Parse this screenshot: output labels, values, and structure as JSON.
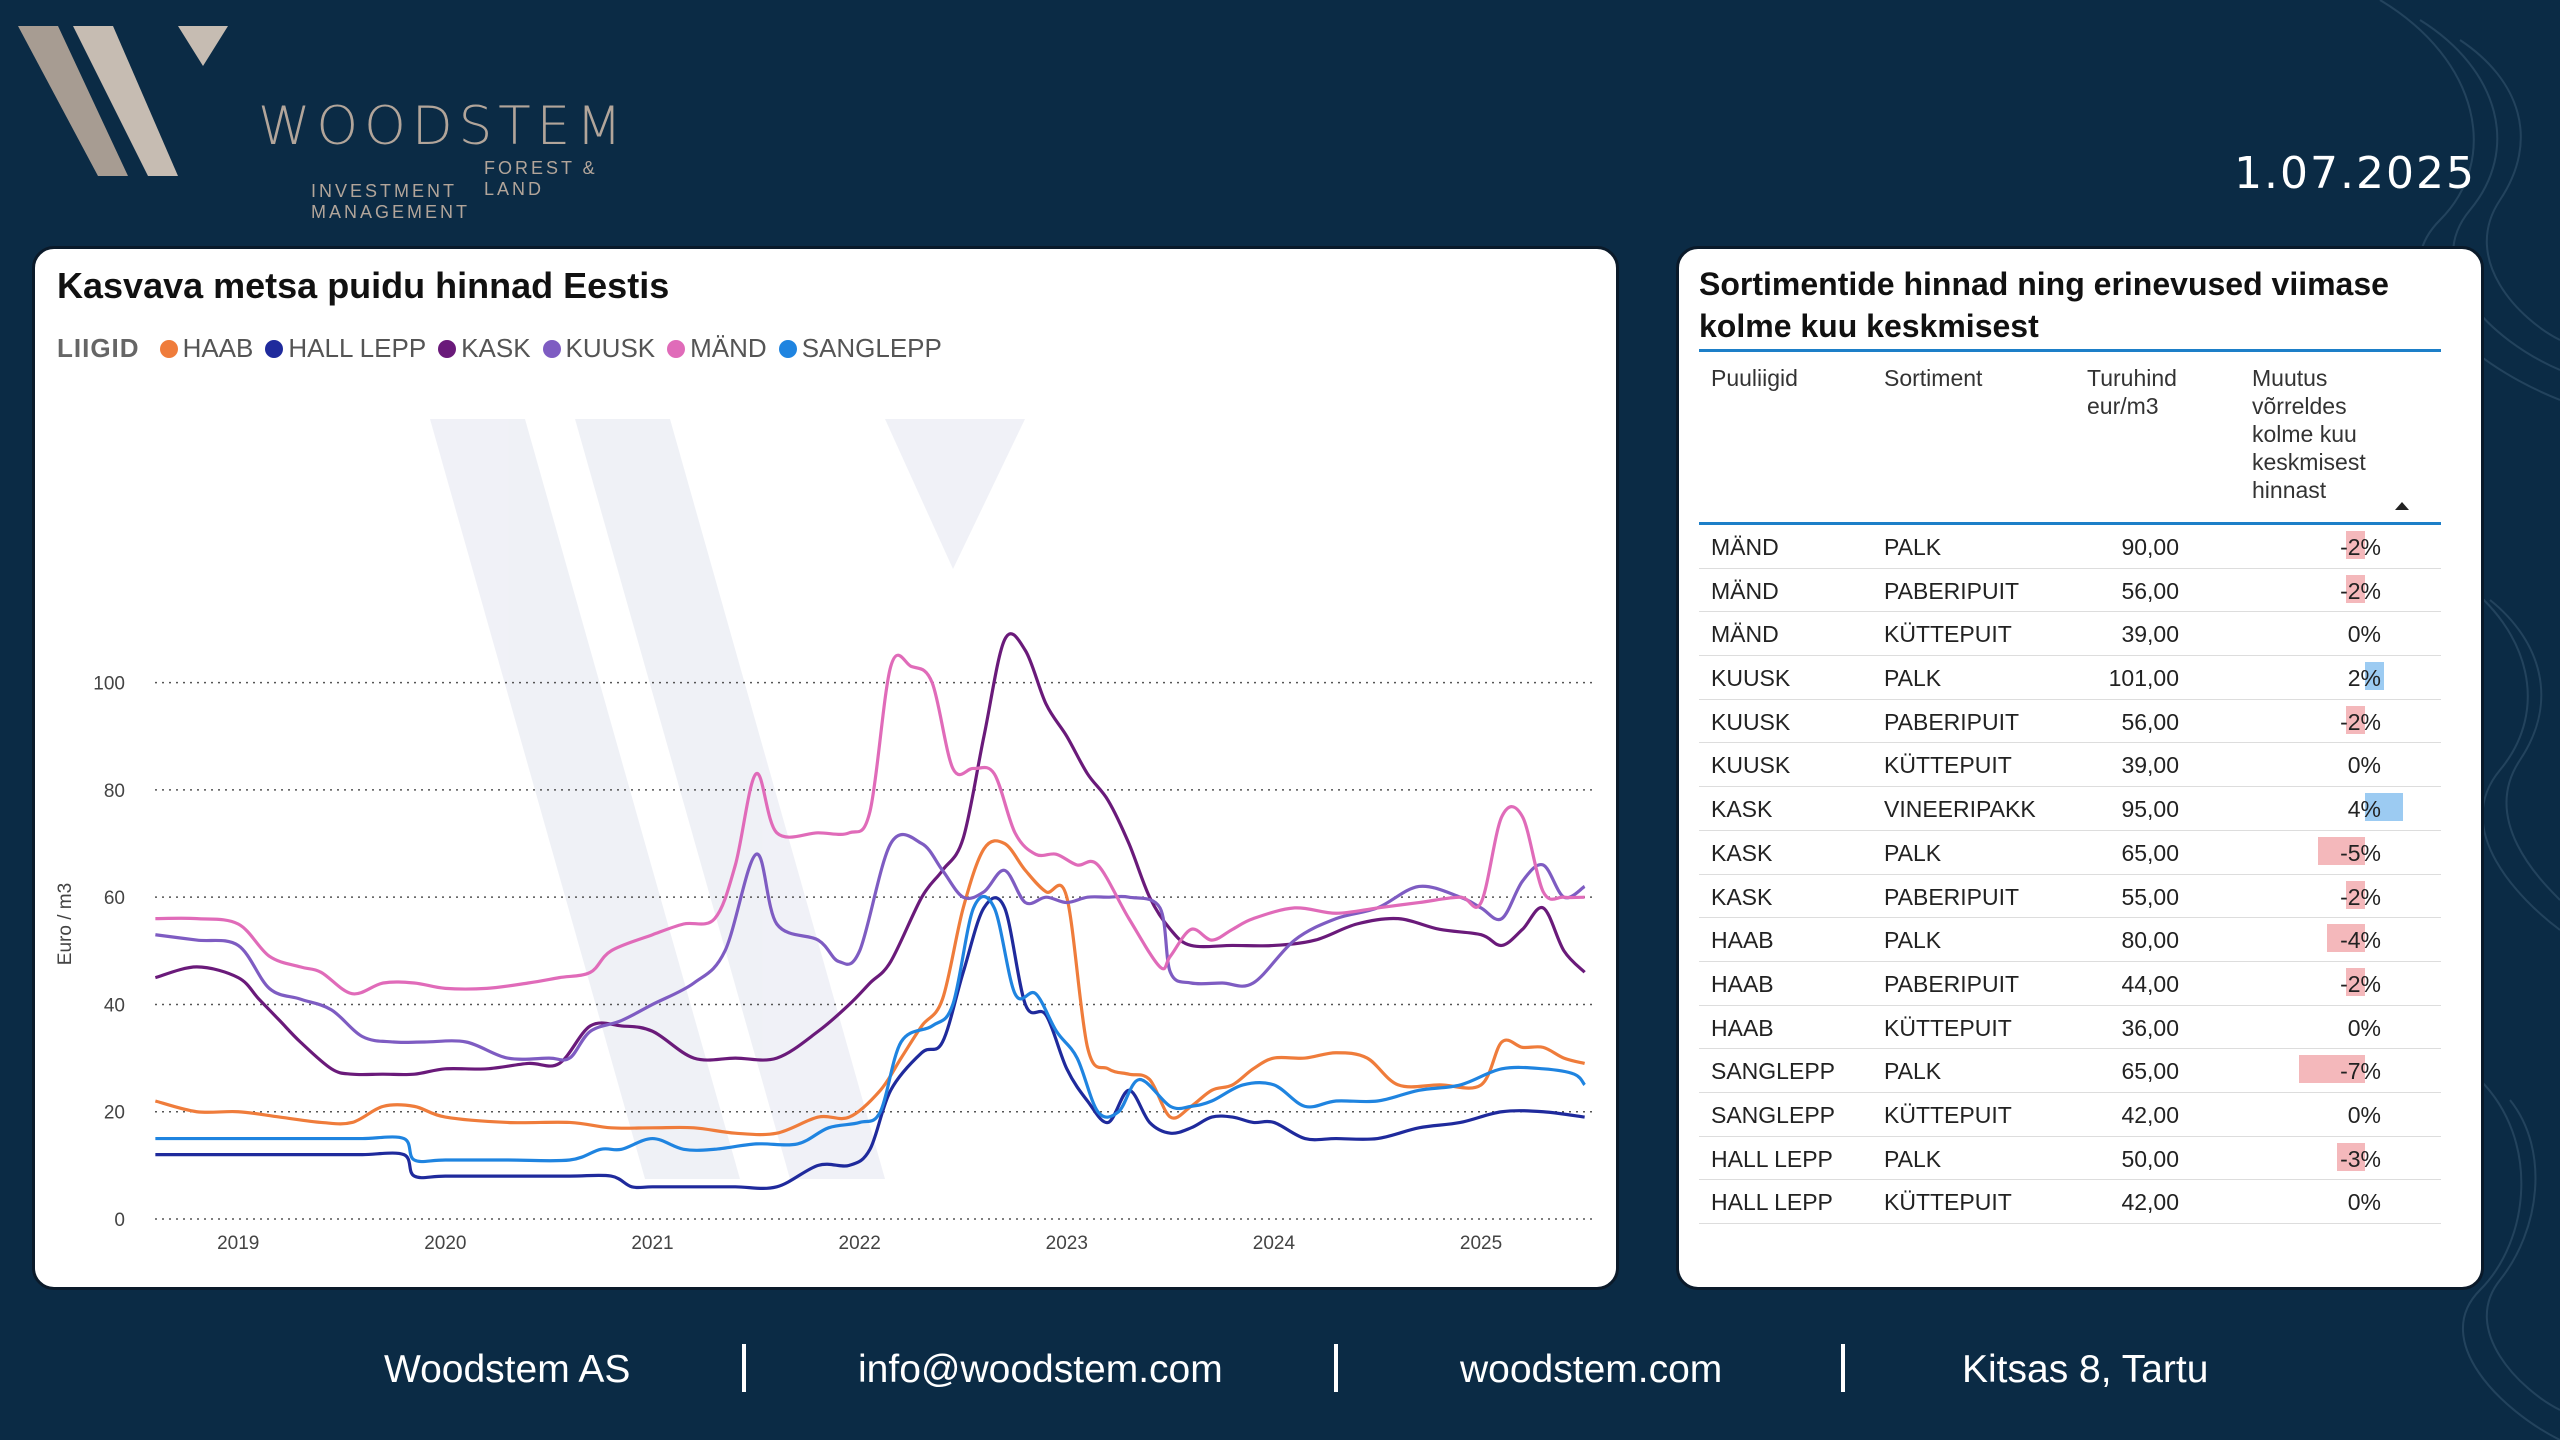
{
  "brand": {
    "name": "WOODSTEM",
    "sub1": "FOREST & LAND",
    "sub2": "INVESTMENT MANAGEMENT"
  },
  "date": "1.07.2025",
  "chart_card": {
    "title": "Kasvava metsa puidu hinnad Eestis",
    "legend_title": "LIIGID"
  },
  "chart_data": {
    "type": "line",
    "title": "Kasvava metsa puidu hinnad Eestis",
    "ylabel": "Euro / m3",
    "xlabel": "",
    "ylim": [
      0,
      110
    ],
    "yticks": [
      0,
      20,
      40,
      60,
      80,
      100
    ],
    "xticks": [
      2019,
      2020,
      2021,
      2022,
      2023,
      2024,
      2025
    ],
    "xlim": [
      2018.55,
      2025.55
    ],
    "grid": true,
    "legend_position": "top-left",
    "series": [
      {
        "name": "HAAB",
        "color": "#ef7c3b",
        "x": [
          2018.6,
          2018.8,
          2019.0,
          2019.2,
          2019.4,
          2019.55,
          2019.7,
          2019.85,
          2020.0,
          2020.3,
          2020.6,
          2020.8,
          2021.0,
          2021.2,
          2021.4,
          2021.6,
          2021.8,
          2021.95,
          2022.1,
          2022.2,
          2022.3,
          2022.4,
          2022.5,
          2022.6,
          2022.7,
          2022.8,
          2022.9,
          2023.0,
          2023.1,
          2023.2,
          2023.3,
          2023.4,
          2023.5,
          2023.6,
          2023.7,
          2023.8,
          2023.9,
          2024.0,
          2024.15,
          2024.3,
          2024.45,
          2024.6,
          2024.8,
          2025.0,
          2025.1,
          2025.2,
          2025.3,
          2025.4,
          2025.5
        ],
        "y": [
          22,
          20,
          20,
          19,
          18,
          18,
          21,
          21,
          19,
          18,
          18,
          17,
          17,
          17,
          16,
          16,
          19,
          19,
          24,
          30,
          36,
          41,
          58,
          69,
          70,
          65,
          61,
          60,
          32,
          28,
          27,
          26,
          19,
          21,
          24,
          25,
          28,
          30,
          30,
          31,
          30,
          25,
          25,
          25,
          33,
          32,
          32,
          30,
          29
        ]
      },
      {
        "name": "HALL LEPP",
        "color": "#1f2a9c",
        "x": [
          2018.6,
          2018.8,
          2019.0,
          2019.2,
          2019.4,
          2019.6,
          2019.8,
          2019.85,
          2020.0,
          2020.3,
          2020.6,
          2020.8,
          2020.9,
          2021.0,
          2021.2,
          2021.4,
          2021.6,
          2021.8,
          2021.95,
          2022.05,
          2022.15,
          2022.3,
          2022.4,
          2022.5,
          2022.6,
          2022.7,
          2022.8,
          2022.9,
          2023.0,
          2023.1,
          2023.2,
          2023.3,
          2023.4,
          2023.5,
          2023.6,
          2023.7,
          2023.8,
          2023.9,
          2024.0,
          2024.15,
          2024.3,
          2024.5,
          2024.7,
          2024.9,
          2025.1,
          2025.3,
          2025.5
        ],
        "y": [
          12,
          12,
          12,
          12,
          12,
          12,
          12,
          8,
          8,
          8,
          8,
          8,
          6,
          6,
          6,
          6,
          6,
          10,
          10,
          13,
          24,
          31,
          33,
          46,
          58,
          58,
          40,
          38,
          28,
          22,
          18,
          24,
          18,
          16,
          17,
          19,
          19,
          18,
          18,
          15,
          15,
          15,
          17,
          18,
          20,
          20,
          19
        ]
      },
      {
        "name": "KASK",
        "color": "#6a1a7a",
        "x": [
          2018.6,
          2018.8,
          2019.0,
          2019.1,
          2019.2,
          2019.3,
          2019.45,
          2019.55,
          2019.7,
          2019.85,
          2020.0,
          2020.2,
          2020.4,
          2020.55,
          2020.7,
          2020.85,
          2021.0,
          2021.2,
          2021.4,
          2021.6,
          2021.8,
          2021.95,
          2022.05,
          2022.15,
          2022.3,
          2022.4,
          2022.5,
          2022.6,
          2022.7,
          2022.8,
          2022.9,
          2023.0,
          2023.1,
          2023.2,
          2023.3,
          2023.4,
          2023.5,
          2023.6,
          2023.8,
          2024.0,
          2024.2,
          2024.4,
          2024.6,
          2024.8,
          2025.0,
          2025.1,
          2025.2,
          2025.3,
          2025.4,
          2025.5
        ],
        "y": [
          45,
          47,
          45,
          41,
          37,
          33,
          28,
          27,
          27,
          27,
          28,
          28,
          29,
          29,
          36,
          36,
          35,
          30,
          30,
          30,
          35,
          40,
          44,
          48,
          60,
          65,
          71,
          90,
          108,
          106,
          96,
          90,
          83,
          78,
          70,
          60,
          54,
          51,
          51,
          51,
          52,
          55,
          56,
          54,
          53,
          51,
          54,
          58,
          50,
          46
        ]
      },
      {
        "name": "KUUSK",
        "color": "#7e5cc2",
        "x": [
          2018.6,
          2018.8,
          2019.0,
          2019.15,
          2019.3,
          2019.45,
          2019.6,
          2019.75,
          2019.9,
          2020.1,
          2020.3,
          2020.5,
          2020.6,
          2020.7,
          2020.85,
          2021.0,
          2021.2,
          2021.35,
          2021.5,
          2021.6,
          2021.8,
          2021.9,
          2022.0,
          2022.15,
          2022.3,
          2022.4,
          2022.5,
          2022.6,
          2022.7,
          2022.8,
          2022.9,
          2023.0,
          2023.1,
          2023.2,
          2023.3,
          2023.45,
          2023.5,
          2023.6,
          2023.75,
          2023.9,
          2024.1,
          2024.3,
          2024.5,
          2024.7,
          2024.9,
          2025.0,
          2025.1,
          2025.2,
          2025.3,
          2025.4,
          2025.5
        ],
        "y": [
          53,
          52,
          51,
          43,
          41,
          39,
          34,
          33,
          33,
          33,
          30,
          30,
          30,
          35,
          37,
          40,
          44,
          50,
          68,
          55,
          52,
          48,
          50,
          70,
          70,
          65,
          60,
          61,
          65,
          59,
          60,
          59,
          60,
          60,
          60,
          58,
          46,
          44,
          44,
          44,
          52,
          56,
          58,
          62,
          60,
          58,
          56,
          63,
          66,
          60,
          62
        ]
      },
      {
        "name": "MÄND",
        "color": "#e06bb9",
        "x": [
          2018.6,
          2018.8,
          2019.0,
          2019.15,
          2019.3,
          2019.4,
          2019.55,
          2019.7,
          2019.85,
          2020.0,
          2020.2,
          2020.4,
          2020.55,
          2020.7,
          2020.8,
          2021.0,
          2021.15,
          2021.3,
          2021.4,
          2021.5,
          2021.6,
          2021.8,
          2021.95,
          2022.05,
          2022.15,
          2022.25,
          2022.35,
          2022.45,
          2022.55,
          2022.65,
          2022.75,
          2022.85,
          2022.95,
          2023.05,
          2023.15,
          2023.3,
          2023.45,
          2023.5,
          2023.6,
          2023.7,
          2023.8,
          2023.9,
          2024.1,
          2024.3,
          2024.5,
          2024.7,
          2024.9,
          2025.0,
          2025.1,
          2025.2,
          2025.3,
          2025.4,
          2025.5
        ],
        "y": [
          56,
          56,
          55,
          49,
          47,
          46,
          42,
          44,
          44,
          43,
          43,
          44,
          45,
          46,
          50,
          53,
          55,
          56,
          66,
          83,
          72,
          72,
          72,
          76,
          103,
          103,
          100,
          84,
          84,
          83,
          72,
          68,
          68,
          66,
          66,
          56,
          47,
          49,
          54,
          52,
          54,
          56,
          58,
          57,
          58,
          59,
          60,
          59,
          75,
          75,
          61,
          60,
          60
        ]
      },
      {
        "name": "SANGLEPP",
        "color": "#1f84e0",
        "x": [
          2018.6,
          2018.8,
          2019.0,
          2019.2,
          2019.4,
          2019.6,
          2019.8,
          2019.85,
          2020.0,
          2020.3,
          2020.6,
          2020.75,
          2020.85,
          2021.0,
          2021.15,
          2021.3,
          2021.5,
          2021.7,
          2021.85,
          2022.0,
          2022.1,
          2022.2,
          2022.35,
          2022.45,
          2022.55,
          2022.65,
          2022.75,
          2022.85,
          2022.95,
          2023.05,
          2023.15,
          2023.25,
          2023.35,
          2023.5,
          2023.6,
          2023.7,
          2023.85,
          2024.0,
          2024.15,
          2024.3,
          2024.5,
          2024.7,
          2024.9,
          2025.1,
          2025.3,
          2025.45,
          2025.5
        ],
        "y": [
          15,
          15,
          15,
          15,
          15,
          15,
          15,
          11,
          11,
          11,
          11,
          13,
          13,
          15,
          13,
          13,
          14,
          14,
          17,
          18,
          20,
          33,
          36,
          40,
          58,
          58,
          42,
          42,
          35,
          30,
          20,
          20,
          26,
          21,
          21,
          22,
          25,
          25,
          21,
          22,
          22,
          24,
          25,
          28,
          28,
          27,
          25
        ]
      }
    ]
  },
  "table_card": {
    "title": "Sortimentide hinnad ning erinevused viimase kolme kuu keskmisest",
    "headers": {
      "species": "Puuliigid",
      "sortiment": "Sortiment",
      "price": "Turuhind eur/m3",
      "change": "Muutus võrreldes kolme kuu keskmisest hinnast"
    },
    "rows": [
      {
        "species": "MÄND",
        "sortiment": "PALK",
        "price": "90,00",
        "change": "-2%",
        "change_value": -2
      },
      {
        "species": "MÄND",
        "sortiment": "PABERIPUIT",
        "price": "56,00",
        "change": "-2%",
        "change_value": -2
      },
      {
        "species": "MÄND",
        "sortiment": "KÜTTEPUIT",
        "price": "39,00",
        "change": "0%",
        "change_value": 0
      },
      {
        "species": "KUUSK",
        "sortiment": "PALK",
        "price": "101,00",
        "change": "2%",
        "change_value": 2
      },
      {
        "species": "KUUSK",
        "sortiment": "PABERIPUIT",
        "price": "56,00",
        "change": "-2%",
        "change_value": -2
      },
      {
        "species": "KUUSK",
        "sortiment": "KÜTTEPUIT",
        "price": "39,00",
        "change": "0%",
        "change_value": 0
      },
      {
        "species": "KASK",
        "sortiment": "VINEERIPAKK",
        "price": "95,00",
        "change": "4%",
        "change_value": 4
      },
      {
        "species": "KASK",
        "sortiment": "PALK",
        "price": "65,00",
        "change": "-5%",
        "change_value": -5
      },
      {
        "species": "KASK",
        "sortiment": "PABERIPUIT",
        "price": "55,00",
        "change": "-2%",
        "change_value": -2
      },
      {
        "species": "HAAB",
        "sortiment": "PALK",
        "price": "80,00",
        "change": "-4%",
        "change_value": -4
      },
      {
        "species": "HAAB",
        "sortiment": "PABERIPUIT",
        "price": "44,00",
        "change": "-2%",
        "change_value": -2
      },
      {
        "species": "HAAB",
        "sortiment": "KÜTTEPUIT",
        "price": "36,00",
        "change": "0%",
        "change_value": 0
      },
      {
        "species": "SANGLEPP",
        "sortiment": "PALK",
        "price": "65,00",
        "change": "-7%",
        "change_value": -7
      },
      {
        "species": "SANGLEPP",
        "sortiment": "KÜTTEPUIT",
        "price": "42,00",
        "change": "0%",
        "change_value": 0
      },
      {
        "species": "HALL LEPP",
        "sortiment": "PALK",
        "price": "50,00",
        "change": "-3%",
        "change_value": -3
      },
      {
        "species": "HALL LEPP",
        "sortiment": "KÜTTEPUIT",
        "price": "42,00",
        "change": "0%",
        "change_value": 0
      }
    ],
    "bar_colors": {
      "negative": "#f4b8bb",
      "positive": "#9ccbf2"
    }
  },
  "footer": {
    "company": "Woodstem AS",
    "email": "info@woodstem.com",
    "website": "woodstem.com",
    "address": "Kitsas 8, Tartu"
  }
}
